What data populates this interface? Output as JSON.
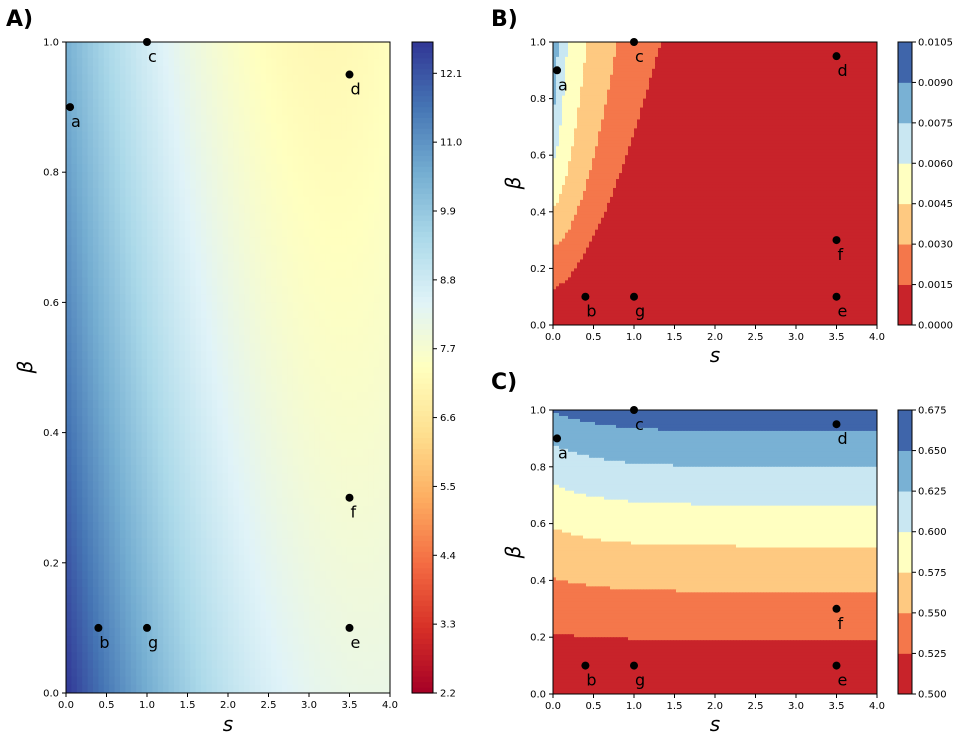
{
  "chart_data": [
    {
      "type": "heatmap",
      "panel": "A)",
      "xlabel": "s",
      "ylabel": "β",
      "xlim": [
        0,
        4
      ],
      "ylim": [
        0,
        1
      ],
      "xticks": [
        "0.0",
        "0.5",
        "1.0",
        "1.5",
        "2.0",
        "2.5",
        "3.0",
        "3.5",
        "4.0"
      ],
      "yticks": [
        "0.0",
        "0.2",
        "0.4",
        "0.6",
        "0.8",
        "1.0"
      ],
      "colorbar_ticks": [
        "2.2",
        "3.3",
        "4.4",
        "5.5",
        "6.6",
        "7.7",
        "8.8",
        "9.9",
        "11.0",
        "12.1"
      ],
      "colorbar_range": [
        2.2,
        12.6
      ],
      "colormap": "RdYlBu",
      "points": [
        {
          "label": "a",
          "x": 0.05,
          "y": 0.9
        },
        {
          "label": "b",
          "x": 0.4,
          "y": 0.1
        },
        {
          "label": "c",
          "x": 1.0,
          "y": 1.0
        },
        {
          "label": "d",
          "x": 3.5,
          "y": 0.95
        },
        {
          "label": "e",
          "x": 3.5,
          "y": 0.1
        },
        {
          "label": "f",
          "x": 3.5,
          "y": 0.3
        },
        {
          "label": "g",
          "x": 1.0,
          "y": 0.1
        }
      ]
    },
    {
      "type": "heatmap",
      "panel": "B)",
      "xlabel": "s",
      "ylabel": "β",
      "xlim": [
        0,
        4
      ],
      "ylim": [
        0,
        1
      ],
      "xticks": [
        "0.0",
        "0.5",
        "1.0",
        "1.5",
        "2.0",
        "2.5",
        "3.0",
        "3.5",
        "4.0"
      ],
      "yticks": [
        "0.0",
        "0.2",
        "0.4",
        "0.6",
        "0.8",
        "1.0"
      ],
      "colorbar_ticks": [
        "0.0000",
        "0.0015",
        "0.0030",
        "0.0045",
        "0.0060",
        "0.0075",
        "0.0090",
        "0.0105"
      ],
      "colormap": "RdYlBu",
      "points": [
        {
          "label": "a",
          "x": 0.05,
          "y": 0.9
        },
        {
          "label": "b",
          "x": 0.4,
          "y": 0.1
        },
        {
          "label": "c",
          "x": 1.0,
          "y": 1.0
        },
        {
          "label": "d",
          "x": 3.5,
          "y": 0.95
        },
        {
          "label": "e",
          "x": 3.5,
          "y": 0.1
        },
        {
          "label": "f",
          "x": 3.5,
          "y": 0.3
        },
        {
          "label": "g",
          "x": 1.0,
          "y": 0.1
        }
      ]
    },
    {
      "type": "heatmap",
      "panel": "C)",
      "xlabel": "s",
      "ylabel": "β",
      "xlim": [
        0,
        4
      ],
      "ylim": [
        0,
        1
      ],
      "xticks": [
        "0.0",
        "0.5",
        "1.0",
        "1.5",
        "2.0",
        "2.5",
        "3.0",
        "3.5",
        "4.0"
      ],
      "yticks": [
        "0.0",
        "0.2",
        "0.4",
        "0.6",
        "0.8",
        "1.0"
      ],
      "colorbar_ticks": [
        "0.500",
        "0.525",
        "0.550",
        "0.575",
        "0.600",
        "0.625",
        "0.650",
        "0.675"
      ],
      "colormap": "RdYlBu",
      "points": [
        {
          "label": "a",
          "x": 0.05,
          "y": 0.9
        },
        {
          "label": "b",
          "x": 0.4,
          "y": 0.1
        },
        {
          "label": "c",
          "x": 1.0,
          "y": 1.0
        },
        {
          "label": "d",
          "x": 3.5,
          "y": 0.95
        },
        {
          "label": "e",
          "x": 3.5,
          "y": 0.1
        },
        {
          "label": "f",
          "x": 3.5,
          "y": 0.3
        },
        {
          "label": "g",
          "x": 1.0,
          "y": 0.1
        }
      ]
    }
  ],
  "colors": {
    "band_colors_low_to_high": [
      "#c8232a",
      "#f4774b",
      "#fec981",
      "#ffffc1",
      "#c9e7f2",
      "#79b1d4",
      "#3f65aa"
    ],
    "point_color": "#000000"
  }
}
